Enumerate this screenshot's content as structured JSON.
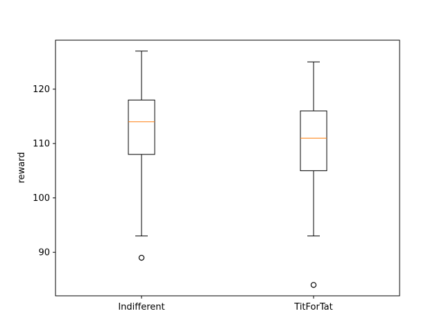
{
  "chart_data": {
    "type": "box",
    "ylabel": "reward",
    "ylim": [
      82,
      129
    ],
    "yticks": [
      90,
      100,
      110,
      120
    ],
    "categories": [
      "Indifferent",
      "TitForTat"
    ],
    "boxes": [
      {
        "category": "Indifferent",
        "whisker_low": 93,
        "q1": 108,
        "median": 114,
        "q3": 118,
        "whisker_high": 127,
        "outliers": [
          89
        ]
      },
      {
        "category": "TitForTat",
        "whisker_low": 93,
        "q1": 105,
        "median": 111,
        "q3": 116,
        "whisker_high": 125,
        "outliers": [
          84
        ]
      }
    ],
    "grid": false,
    "colors": {
      "box": "#000000",
      "median": "#ff7f0e",
      "outlier": "#000000"
    }
  }
}
